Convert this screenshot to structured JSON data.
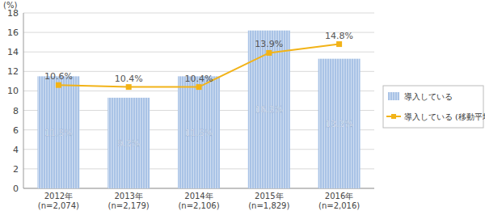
{
  "chart_data": {
    "type": "bar",
    "y_label": "(%)",
    "categories": [
      "2012年\n(n=2,074)",
      "2013年\n(n=2,179)",
      "2014年\n(n=2,106)",
      "2015年\n(n=1,829)",
      "2016年\n(n=2,016)"
    ],
    "series": [
      {
        "name": "導入している",
        "type": "bar",
        "color": "#a9c3e6",
        "values": [
          11.5,
          9.3,
          11.5,
          16.2,
          13.3
        ],
        "value_labels": [
          "11.5%",
          "9.3%",
          "11.5%",
          "16.2%",
          "13.3%"
        ]
      },
      {
        "name": "導入している (移動平均)",
        "type": "line",
        "color": "#f2b318",
        "marker": "square",
        "line_style": "solid",
        "values": [
          10.6,
          10.4,
          10.4,
          13.9,
          14.8
        ],
        "value_labels": [
          "10.6%",
          "10.4%",
          "10.4%",
          "13.9%",
          "14.8%"
        ]
      }
    ],
    "ylim": [
      0,
      18
    ],
    "yticks": [
      0,
      2,
      4,
      6,
      8,
      10,
      12,
      14,
      16,
      18
    ],
    "grid": true,
    "data_labels": true,
    "legend": "right"
  }
}
